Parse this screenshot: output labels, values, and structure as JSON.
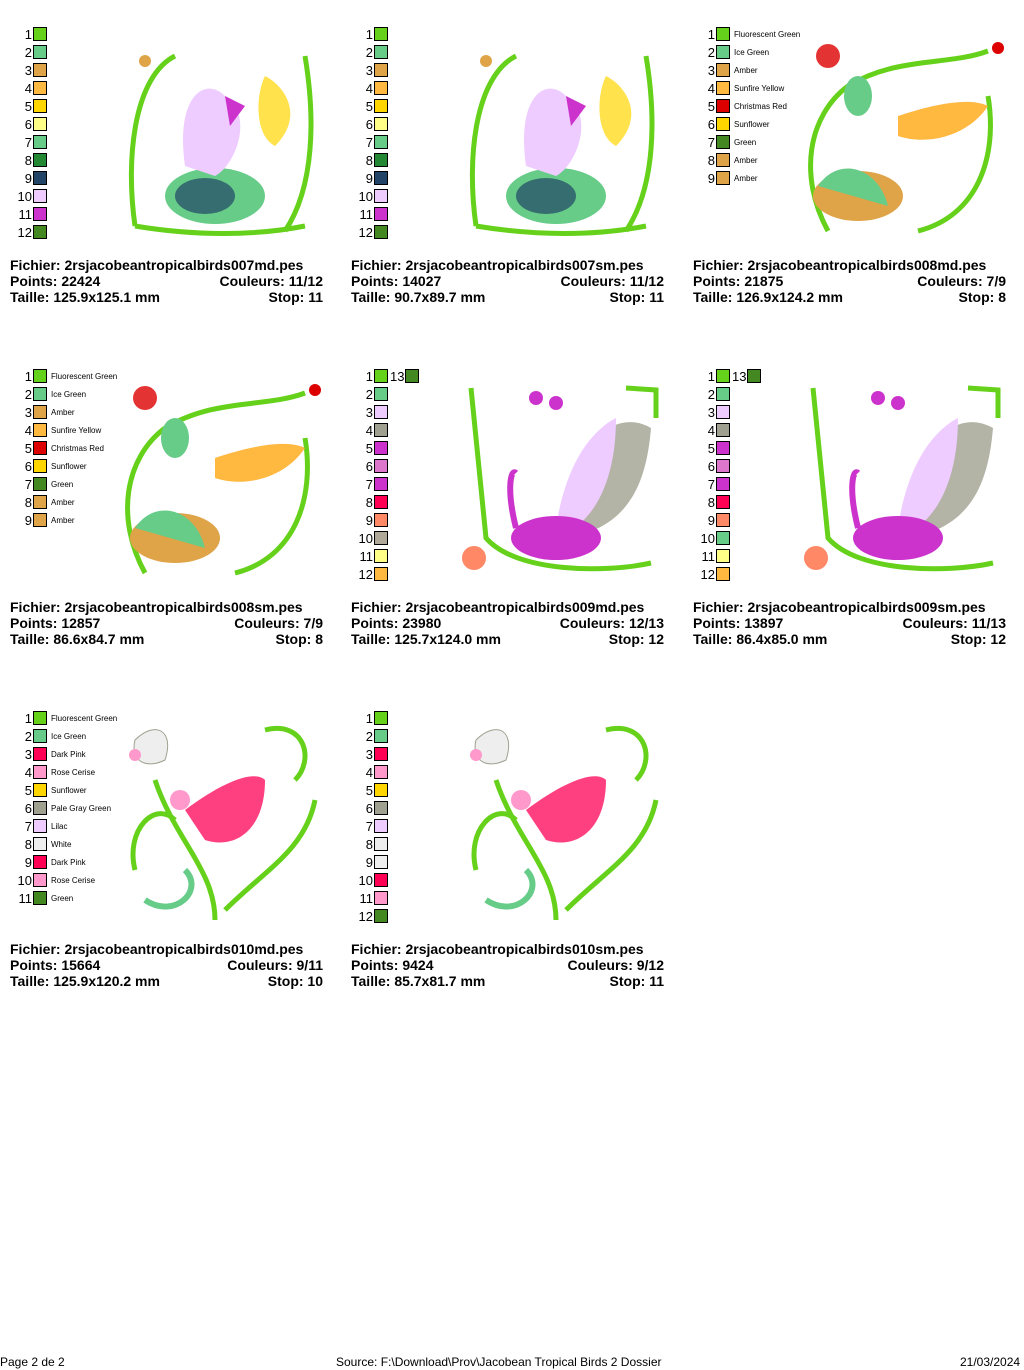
{
  "labels": {
    "file": "Fichier: ",
    "points": "Points: ",
    "colors": "Couleurs: ",
    "size": "Taille: ",
    "stop": "Stop: "
  },
  "designs": [
    {
      "file": "2rsjacobeantropicalbirds007md.pes",
      "points": "22424",
      "colors": "11/12",
      "size": "125.9x125.1 mm",
      "stop": "11",
      "motif": "crane",
      "swatches": [
        {
          "n": "1",
          "c": "#66d11a"
        },
        {
          "n": "2",
          "c": "#66cc88"
        },
        {
          "n": "3",
          "c": "#e0a448"
        },
        {
          "n": "4",
          "c": "#ffb840"
        },
        {
          "n": "5",
          "c": "#ffd600"
        },
        {
          "n": "6",
          "c": "#ffff88"
        },
        {
          "n": "7",
          "c": "#66cc88"
        },
        {
          "n": "8",
          "c": "#228833"
        },
        {
          "n": "9",
          "c": "#224466"
        },
        {
          "n": "10",
          "c": "#eeccff"
        },
        {
          "n": "11",
          "c": "#cc33cc"
        },
        {
          "n": "12",
          "c": "#448822"
        }
      ]
    },
    {
      "file": "2rsjacobeantropicalbirds007sm.pes",
      "points": "14027",
      "colors": "11/12",
      "size": "90.7x89.7 mm",
      "stop": "11",
      "motif": "crane",
      "swatches": [
        {
          "n": "1",
          "c": "#66d11a"
        },
        {
          "n": "2",
          "c": "#66cc88"
        },
        {
          "n": "3",
          "c": "#e0a448"
        },
        {
          "n": "4",
          "c": "#ffb840"
        },
        {
          "n": "5",
          "c": "#ffd600"
        },
        {
          "n": "6",
          "c": "#ffff88"
        },
        {
          "n": "7",
          "c": "#66cc88"
        },
        {
          "n": "8",
          "c": "#228833"
        },
        {
          "n": "9",
          "c": "#224466"
        },
        {
          "n": "10",
          "c": "#eeccff"
        },
        {
          "n": "11",
          "c": "#cc33cc"
        },
        {
          "n": "12",
          "c": "#448822"
        }
      ]
    },
    {
      "file": "2rsjacobeantropicalbirds008md.pes",
      "points": "21875",
      "colors": "7/9",
      "size": "126.9x124.2 mm",
      "stop": "8",
      "motif": "yellowbird",
      "swatches": [
        {
          "n": "1",
          "c": "#66d11a",
          "name": "Fluorescent Green"
        },
        {
          "n": "2",
          "c": "#66cc88",
          "name": "Ice Green"
        },
        {
          "n": "3",
          "c": "#e0a448",
          "name": "Amber"
        },
        {
          "n": "4",
          "c": "#ffb840",
          "name": "Sunfire Yellow"
        },
        {
          "n": "5",
          "c": "#dd0000",
          "name": "Christmas Red"
        },
        {
          "n": "6",
          "c": "#ffd600",
          "name": "Sunflower"
        },
        {
          "n": "7",
          "c": "#448822",
          "name": "Green"
        },
        {
          "n": "8",
          "c": "#e0a448",
          "name": "Amber"
        },
        {
          "n": "9",
          "c": "#e0a448",
          "name": "Amber"
        }
      ]
    },
    {
      "file": "2rsjacobeantropicalbirds008sm.pes",
      "points": "12857",
      "colors": "7/9",
      "size": "86.6x84.7 mm",
      "stop": "8",
      "motif": "yellowbird",
      "swatches": [
        {
          "n": "1",
          "c": "#66d11a",
          "name": "Fluorescent Green"
        },
        {
          "n": "2",
          "c": "#66cc88",
          "name": "Ice Green"
        },
        {
          "n": "3",
          "c": "#e0a448",
          "name": "Amber"
        },
        {
          "n": "4",
          "c": "#ffb840",
          "name": "Sunfire Yellow"
        },
        {
          "n": "5",
          "c": "#dd0000",
          "name": "Christmas Red"
        },
        {
          "n": "6",
          "c": "#ffd600",
          "name": "Sunflower"
        },
        {
          "n": "7",
          "c": "#448822",
          "name": "Green"
        },
        {
          "n": "8",
          "c": "#e0a448",
          "name": "Amber"
        },
        {
          "n": "9",
          "c": "#e0a448",
          "name": "Amber"
        }
      ]
    },
    {
      "file": "2rsjacobeantropicalbirds009md.pes",
      "points": "23980",
      "colors": "12/13",
      "size": "125.7x124.0 mm",
      "stop": "12",
      "motif": "peacock",
      "extra": {
        "n": "13",
        "c": "#448822"
      },
      "swatches": [
        {
          "n": "1",
          "c": "#66d11a"
        },
        {
          "n": "2",
          "c": "#66cc88"
        },
        {
          "n": "3",
          "c": "#eeccff"
        },
        {
          "n": "4",
          "c": "#a0a090"
        },
        {
          "n": "5",
          "c": "#cc33cc"
        },
        {
          "n": "6",
          "c": "#dd77cc"
        },
        {
          "n": "7",
          "c": "#cc33cc"
        },
        {
          "n": "8",
          "c": "#ff0055"
        },
        {
          "n": "9",
          "c": "#ff8866"
        },
        {
          "n": "10",
          "c": "#b0a898"
        },
        {
          "n": "11",
          "c": "#ffff88"
        },
        {
          "n": "12",
          "c": "#ffb840"
        }
      ]
    },
    {
      "file": "2rsjacobeantropicalbirds009sm.pes",
      "points": "13897",
      "colors": "11/13",
      "size": "86.4x85.0 mm",
      "stop": "12",
      "motif": "peacock",
      "extra": {
        "n": "13",
        "c": "#448822"
      },
      "swatches": [
        {
          "n": "1",
          "c": "#66d11a"
        },
        {
          "n": "2",
          "c": "#66cc88"
        },
        {
          "n": "3",
          "c": "#eeccff"
        },
        {
          "n": "4",
          "c": "#a0a090"
        },
        {
          "n": "5",
          "c": "#cc33cc"
        },
        {
          "n": "6",
          "c": "#dd77cc"
        },
        {
          "n": "7",
          "c": "#cc33cc"
        },
        {
          "n": "8",
          "c": "#ff0055"
        },
        {
          "n": "9",
          "c": "#ff8866"
        },
        {
          "n": "10",
          "c": "#66cc88"
        },
        {
          "n": "11",
          "c": "#ffff88"
        },
        {
          "n": "12",
          "c": "#ffb840"
        }
      ]
    },
    {
      "file": "2rsjacobeantropicalbirds010md.pes",
      "points": "15664",
      "colors": "9/11",
      "size": "125.9x120.2 mm",
      "stop": "10",
      "motif": "pinkbird",
      "swatches": [
        {
          "n": "1",
          "c": "#66d11a",
          "name": "Fluorescent Green"
        },
        {
          "n": "2",
          "c": "#66cc88",
          "name": "Ice Green"
        },
        {
          "n": "3",
          "c": "#ff0055",
          "name": "Dark Pink"
        },
        {
          "n": "4",
          "c": "#ff99cc",
          "name": "Rose Cerise"
        },
        {
          "n": "5",
          "c": "#ffd600",
          "name": "Sunflower"
        },
        {
          "n": "6",
          "c": "#a0a090",
          "name": "Pale Gray Green"
        },
        {
          "n": "7",
          "c": "#eeccff",
          "name": "Lilac"
        },
        {
          "n": "8",
          "c": "#eeeeee",
          "name": "White"
        },
        {
          "n": "9",
          "c": "#ff0055",
          "name": "Dark Pink"
        },
        {
          "n": "10",
          "c": "#ff99cc",
          "name": "Rose Cerise"
        },
        {
          "n": "11",
          "c": "#448822",
          "name": "Green"
        }
      ]
    },
    {
      "file": "2rsjacobeantropicalbirds010sm.pes",
      "points": "9424",
      "colors": "9/12",
      "size": "85.7x81.7 mm",
      "stop": "11",
      "motif": "pinkbird",
      "swatches": [
        {
          "n": "1",
          "c": "#66d11a"
        },
        {
          "n": "2",
          "c": "#66cc88"
        },
        {
          "n": "3",
          "c": "#ff0055"
        },
        {
          "n": "4",
          "c": "#ff99cc"
        },
        {
          "n": "5",
          "c": "#ffd600"
        },
        {
          "n": "6",
          "c": "#a0a090"
        },
        {
          "n": "7",
          "c": "#eeccff"
        },
        {
          "n": "8",
          "c": "#eeeeee"
        },
        {
          "n": "9",
          "c": "#eeeeee"
        },
        {
          "n": "10",
          "c": "#ff0055"
        },
        {
          "n": "11",
          "c": "#ff99cc"
        },
        {
          "n": "12",
          "c": "#448822"
        }
      ]
    }
  ],
  "footer": {
    "page": "Page 2 de 2",
    "source": "Source: F:\\Download\\Prov\\Jacobean Tropical Birds 2 Dossier",
    "date": "21/03/2024"
  }
}
